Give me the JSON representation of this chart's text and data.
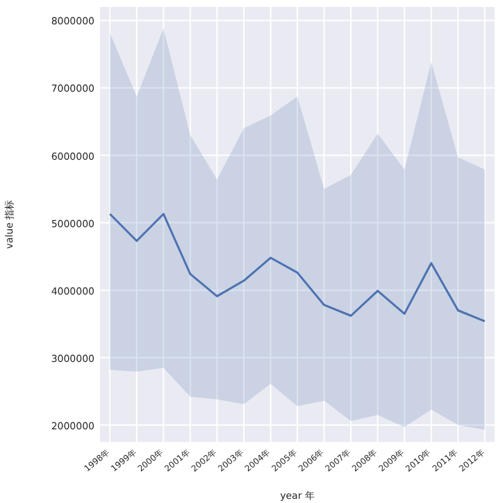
{
  "chart_data": {
    "type": "line",
    "xlabel": "year 年",
    "ylabel": "value 指标",
    "categories": [
      "1998年",
      "1999年",
      "2000年",
      "2001年",
      "2002年",
      "2003年",
      "2004年",
      "2005年",
      "2006年",
      "2007年",
      "2008年",
      "2009年",
      "2010年",
      "2011年",
      "2012年"
    ],
    "series": [
      {
        "color": "#4c72b0",
        "values": [
          5130000.0,
          4730000.0,
          5130000.0,
          4240000.0,
          3910000.0,
          4140000.0,
          4480000.0,
          4260000.0,
          3780000.0,
          3620000.0,
          3990000.0,
          3650000.0,
          4400000.0,
          3700000.0,
          3540000.0
        ],
        "upper": [
          7810000.0,
          6870000.0,
          7880000.0,
          6300000.0,
          5640000.0,
          6400000.0,
          6590000.0,
          6870000.0,
          5500000.0,
          5710000.0,
          6320000.0,
          5790000.0,
          7380000.0,
          5970000.0,
          5790000.0
        ],
        "lower": [
          2820000.0,
          2790000.0,
          2850000.0,
          2420000.0,
          2380000.0,
          2310000.0,
          2610000.0,
          2280000.0,
          2360000.0,
          2060000.0,
          2150000.0,
          1970000.0,
          2230000.0,
          2000000.0,
          1930000.0
        ]
      }
    ],
    "ylim": [
      1750000,
      8200000
    ],
    "yticks": [
      2000000,
      3000000,
      4000000,
      5000000,
      6000000,
      7000000,
      8000000
    ],
    "grid": true
  }
}
